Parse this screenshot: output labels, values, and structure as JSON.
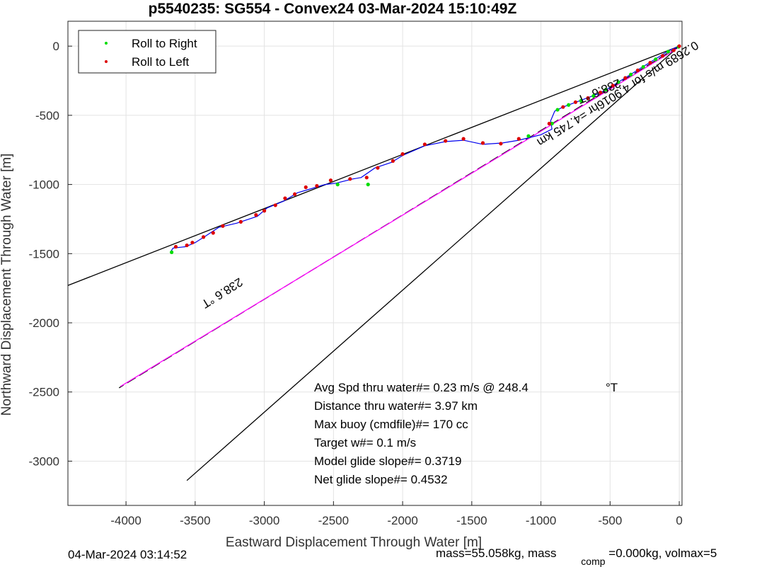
{
  "chart_data": {
    "type": "line",
    "title": "p5540235: SG554 - Convex24 03-Mar-2024 15:10:49Z",
    "xlabel": "Eastward Displacement Through Water [m]",
    "ylabel": "Northward Displacement Through Water [m]",
    "xlim": [
      -4420,
      20
    ],
    "ylim": [
      -3320,
      180
    ],
    "x_ticks": [
      -4000,
      -3500,
      -3000,
      -2500,
      -2000,
      -1500,
      -1000,
      -500,
      0
    ],
    "x_tick_labels": [
      "-4000",
      "-3500",
      "-3000",
      "-2500",
      "-2000",
      "-1500",
      "-1000",
      "-500",
      "0"
    ],
    "y_ticks": [
      0,
      -500,
      -1000,
      -1500,
      -2000,
      -2500,
      -3000
    ],
    "y_tick_labels": [
      "0",
      "-500",
      "-1000",
      "-1500",
      "-2000",
      "-2500",
      "-3000"
    ],
    "grid": true,
    "legend_position": "top-left",
    "series": [
      {
        "name": "Roll to Right",
        "color": "#00dd00",
        "marker": "dot"
      },
      {
        "name": "Roll to Left",
        "color": "#dd0000",
        "marker": "dot"
      }
    ],
    "track": {
      "color": "#0000ee",
      "points": [
        [
          0,
          0
        ],
        [
          -60,
          -25
        ],
        [
          -120,
          -60
        ],
        [
          -200,
          -110
        ],
        [
          -280,
          -160
        ],
        [
          -360,
          -210
        ],
        [
          -440,
          -260
        ],
        [
          -520,
          -310
        ],
        [
          -600,
          -350
        ],
        [
          -680,
          -380
        ],
        [
          -760,
          -410
        ],
        [
          -840,
          -440
        ],
        [
          -900,
          -470
        ],
        [
          -930,
          -540
        ],
        [
          -920,
          -600
        ],
        [
          -1000,
          -640
        ],
        [
          -1160,
          -680
        ],
        [
          -1280,
          -700
        ],
        [
          -1420,
          -710
        ],
        [
          -1560,
          -680
        ],
        [
          -1690,
          -690
        ],
        [
          -1840,
          -720
        ],
        [
          -2000,
          -790
        ],
        [
          -2080,
          -840
        ],
        [
          -2200,
          -880
        ],
        [
          -2300,
          -950
        ],
        [
          -2360,
          -960
        ],
        [
          -2480,
          -990
        ],
        [
          -2560,
          -1000
        ],
        [
          -2660,
          -1030
        ],
        [
          -2760,
          -1060
        ],
        [
          -2860,
          -1120
        ],
        [
          -2980,
          -1170
        ],
        [
          -3050,
          -1230
        ],
        [
          -3200,
          -1280
        ],
        [
          -3330,
          -1310
        ],
        [
          -3420,
          -1370
        ],
        [
          -3500,
          -1420
        ],
        [
          -3570,
          -1450
        ],
        [
          -3660,
          -1460
        ],
        [
          -3680,
          -1490
        ]
      ]
    },
    "roll_right_points": [
      [
        -5,
        -5
      ],
      [
        -80,
        -40
      ],
      [
        -170,
        -95
      ],
      [
        -260,
        -150
      ],
      [
        -350,
        -205
      ],
      [
        -440,
        -260
      ],
      [
        -530,
        -315
      ],
      [
        -620,
        -360
      ],
      [
        -710,
        -395
      ],
      [
        -800,
        -425
      ],
      [
        -880,
        -460
      ],
      [
        -920,
        -560
      ],
      [
        -1090,
        -650
      ],
      [
        -2250,
        -1000
      ],
      [
        -2470,
        -1000
      ],
      [
        -3670,
        -1490
      ]
    ],
    "roll_left_points": [
      [
        0,
        0
      ],
      [
        -40,
        -30
      ],
      [
        -120,
        -70
      ],
      [
        -210,
        -120
      ],
      [
        -300,
        -175
      ],
      [
        -390,
        -230
      ],
      [
        -480,
        -285
      ],
      [
        -570,
        -335
      ],
      [
        -660,
        -375
      ],
      [
        -750,
        -405
      ],
      [
        -840,
        -440
      ],
      [
        -940,
        -560
      ],
      [
        -1160,
        -670
      ],
      [
        -1290,
        -705
      ],
      [
        -1420,
        -700
      ],
      [
        -1560,
        -670
      ],
      [
        -1690,
        -685
      ],
      [
        -1840,
        -710
      ],
      [
        -2000,
        -780
      ],
      [
        -2070,
        -830
      ],
      [
        -2180,
        -880
      ],
      [
        -2260,
        -950
      ],
      [
        -2380,
        -960
      ],
      [
        -2520,
        -970
      ],
      [
        -2620,
        -1010
      ],
      [
        -2700,
        -1020
      ],
      [
        -2780,
        -1070
      ],
      [
        -2850,
        -1100
      ],
      [
        -2920,
        -1150
      ],
      [
        -3000,
        -1190
      ],
      [
        -3060,
        -1220
      ],
      [
        -3170,
        -1270
      ],
      [
        -3300,
        -1300
      ],
      [
        -3370,
        -1350
      ],
      [
        -3440,
        -1380
      ],
      [
        -3520,
        -1420
      ],
      [
        -3560,
        -1440
      ],
      [
        -3640,
        -1450
      ]
    ],
    "ref_lines": [
      {
        "name": "heading-line-upper",
        "color": "#000000",
        "x": [
          0,
          -4420
        ],
        "y": [
          0,
          -1730
        ]
      },
      {
        "name": "heading-line-lower",
        "color": "#000000",
        "x": [
          0,
          -3560
        ],
        "y": [
          0,
          -3140
        ]
      },
      {
        "name": "current-line-dashed",
        "color": "#000000",
        "dashed": true,
        "x": [
          0,
          -4050
        ],
        "y": [
          0,
          -2470
        ]
      },
      {
        "name": "current-line-magenta",
        "color": "#ff00ff",
        "x": [
          -20,
          -4040
        ],
        "y": [
          -20,
          -2460
        ]
      }
    ],
    "rotated_labels": [
      {
        "text": "238.6 °T",
        "x": -590,
        "y": -300,
        "angle": 157
      },
      {
        "text": "0.2689 m/s for 4.9016hr =4.745 km",
        "x": -460,
        "y": -320,
        "angle": 148
      },
      {
        "text": "238.6 °T",
        "x": -3320,
        "y": -1760,
        "angle": 148
      }
    ],
    "annotations": [
      "Avg Spd thru water#=  0.23 m/s @ 248.4",
      "Distance thru water#=  3.97 km",
      "Max buoy (cmdfile)#= 170 cc",
      "Target w#= 0.1 m/s",
      "Model glide slope#= 0.3719",
      "Net glide slope#= 0.4532"
    ],
    "annotation_unit": "°T"
  },
  "footer": {
    "left": "04-Mar-2024 03:14:52",
    "right_prefix": "mass=55.058kg, mass",
    "right_sub": "comp",
    "right_suffix": "=0.000kg, volmax=5"
  }
}
